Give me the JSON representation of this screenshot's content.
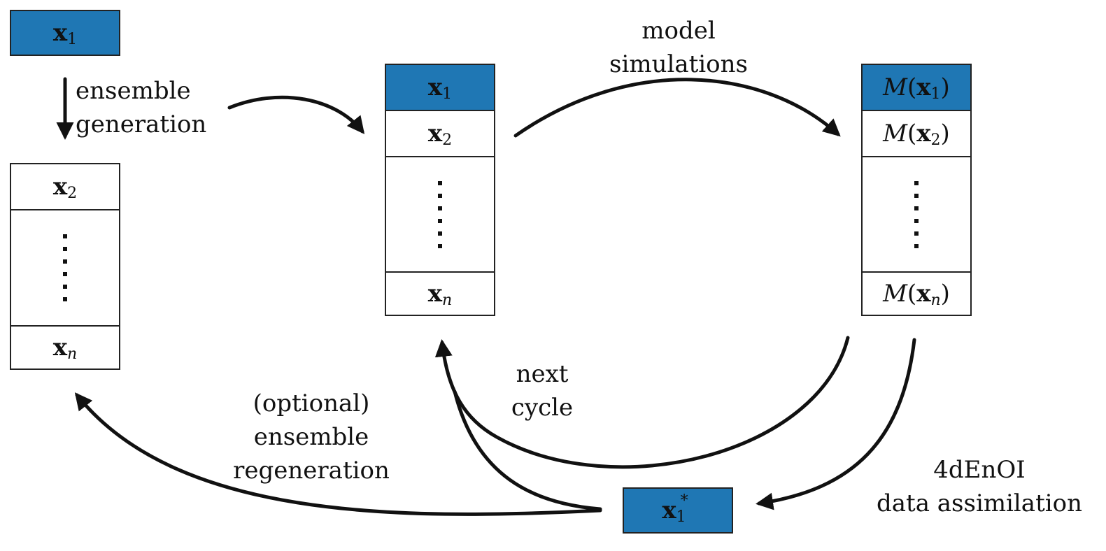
{
  "stage1": {
    "top_cell": {
      "symbol": "x",
      "sub": "1"
    },
    "ensemble": [
      {
        "symbol": "x",
        "sub": "2"
      },
      {
        "symbol": "x",
        "sub": "n"
      }
    ]
  },
  "stage2": {
    "cells": [
      {
        "symbol": "x",
        "sub": "1"
      },
      {
        "symbol": "x",
        "sub": "2"
      },
      {
        "symbol": "x",
        "sub": "n"
      }
    ]
  },
  "stage3": {
    "operator": "M",
    "cells": [
      {
        "symbol": "x",
        "sub": "1"
      },
      {
        "symbol": "x",
        "sub": "2"
      },
      {
        "symbol": "x",
        "sub": "n"
      }
    ]
  },
  "analysis": {
    "symbol": "x",
    "sub": "1",
    "sup": "*"
  },
  "labels": {
    "ensemble_generation": [
      "ensemble",
      "generation"
    ],
    "model_simulations": [
      "model",
      "simulations"
    ],
    "next_cycle": [
      "next",
      "cycle"
    ],
    "regeneration": [
      "(optional)",
      "ensemble",
      "regeneration"
    ],
    "assimilation": [
      "4dEnOI",
      "data assimilation"
    ]
  },
  "colors": {
    "fill": "#1f77b4",
    "stroke": "#111111"
  }
}
